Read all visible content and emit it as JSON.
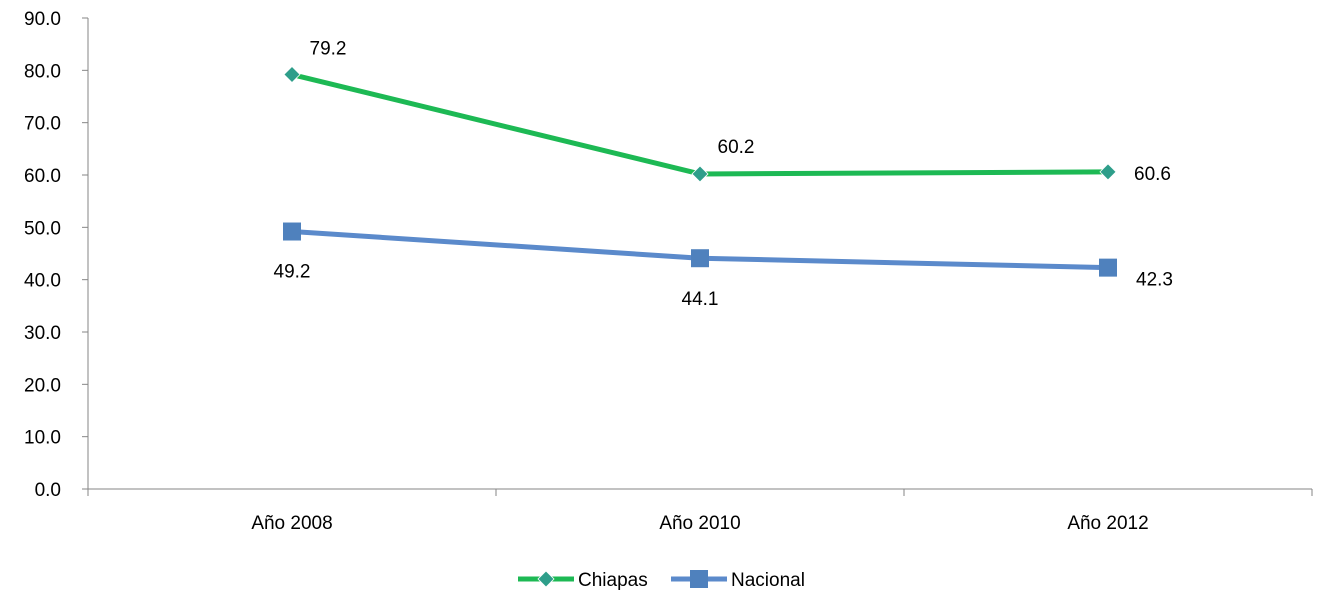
{
  "chart_data": {
    "type": "line",
    "title": "",
    "xlabel": "",
    "ylabel": "",
    "categories": [
      "Año 2008",
      "Año 2010",
      "Año 2012"
    ],
    "ylim": [
      0,
      90
    ],
    "yticks": [
      "0.0",
      "10.0",
      "20.0",
      "30.0",
      "40.0",
      "50.0",
      "60.0",
      "70.0",
      "80.0",
      "90.0"
    ],
    "grid": false,
    "legend_position": "bottom",
    "series": [
      {
        "name": "Chiapas",
        "values": [
          79.2,
          60.2,
          60.6
        ],
        "labels": [
          "79.2",
          "60.2",
          "60.6"
        ],
        "color": "#1DB954",
        "marker_color": "#2E9E8A",
        "marker": "diamond"
      },
      {
        "name": "Nacional",
        "values": [
          49.2,
          44.1,
          42.3
        ],
        "labels": [
          "49.2",
          "44.1",
          "42.3"
        ],
        "color": "#5B8ACB",
        "marker_color": "#4F81BD",
        "marker": "square"
      }
    ]
  }
}
